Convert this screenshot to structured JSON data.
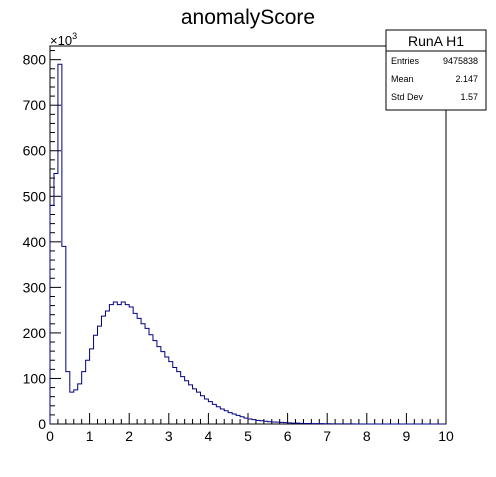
{
  "chart_data": {
    "type": "histogram",
    "title": "anomalyScore",
    "y_multiplier_label": "×10",
    "y_multiplier_exponent": "3",
    "xlim": [
      0,
      10
    ],
    "ylim": [
      0,
      830
    ],
    "x_ticks": [
      0,
      1,
      2,
      3,
      4,
      5,
      6,
      7,
      8,
      9,
      10
    ],
    "x_tick_labels": [
      "0",
      "1",
      "2",
      "3",
      "4",
      "5",
      "6",
      "7",
      "8",
      "9",
      "10"
    ],
    "y_ticks": [
      0,
      100,
      200,
      300,
      400,
      500,
      600,
      700,
      800
    ],
    "y_tick_labels": [
      "0",
      "100",
      "200",
      "300",
      "400",
      "500",
      "600",
      "700",
      "800"
    ],
    "line_color": "#000080",
    "bin_width": 0.1,
    "bin_edges_start": 0,
    "counts_thousands": [
      480,
      550,
      790,
      390,
      115,
      70,
      75,
      88,
      115,
      140,
      165,
      195,
      215,
      237,
      248,
      262,
      268,
      262,
      268,
      262,
      257,
      243,
      232,
      220,
      210,
      196,
      183,
      170,
      159,
      147,
      137,
      124,
      115,
      104,
      95,
      86,
      77,
      70,
      62,
      55,
      49,
      43,
      38,
      33,
      29,
      25,
      22,
      19,
      16,
      13,
      11,
      9.5,
      8,
      7,
      6,
      5,
      4.5,
      4,
      3.5,
      3,
      2.5,
      2,
      1.8,
      1.5,
      1.2,
      1,
      0.9,
      0.8,
      0.7,
      0.6,
      0.5,
      0.4,
      0.35,
      0.3,
      0.25,
      0.2,
      0.15,
      0.12,
      0.1,
      0.08,
      0.06,
      0.05,
      0.04,
      0.03,
      0.02,
      0.02,
      0.01,
      0.01,
      0,
      0,
      0,
      0,
      0,
      0,
      0,
      0,
      0,
      0,
      0,
      0
    ]
  },
  "stats_box": {
    "title": "RunA H1",
    "rows": [
      {
        "label": "Entries",
        "value": "9475838"
      },
      {
        "label": "Mean",
        "value": "2.147"
      },
      {
        "label": "Std Dev",
        "value": "1.57"
      }
    ]
  }
}
